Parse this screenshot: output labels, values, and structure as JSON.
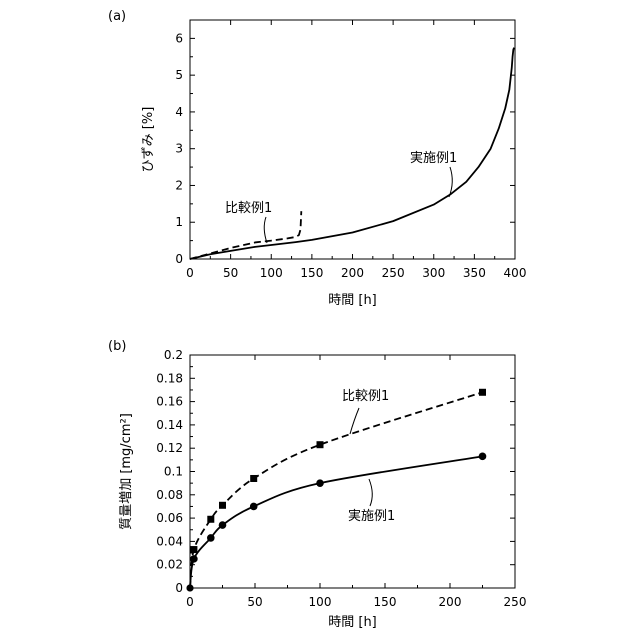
{
  "chart_data": [
    {
      "panel": "(a)",
      "type": "line",
      "xlabel": "時間 [h]",
      "ylabel": "ひずみ [%]",
      "xlim": [
        0,
        400
      ],
      "ylim": [
        0,
        6.5
      ],
      "xticks": [
        0,
        50,
        100,
        150,
        200,
        250,
        300,
        350,
        400
      ],
      "yticks": [
        0,
        1,
        2,
        3,
        4,
        5,
        6
      ],
      "grid": false,
      "series": [
        {
          "name": "実施例1",
          "style": "solid",
          "x": [
            0,
            10,
            25,
            50,
            80,
            100,
            130,
            150,
            200,
            250,
            300,
            320,
            340,
            355,
            370,
            380,
            388,
            393,
            396,
            397,
            398,
            399
          ],
          "y": [
            0,
            0.05,
            0.13,
            0.22,
            0.33,
            0.38,
            0.46,
            0.52,
            0.72,
            1.03,
            1.48,
            1.75,
            2.1,
            2.5,
            3.0,
            3.55,
            4.1,
            4.6,
            5.2,
            5.5,
            5.7,
            5.75
          ]
        },
        {
          "name": "比較例1",
          "style": "dashed",
          "x": [
            0,
            20,
            50,
            80,
            100,
            120,
            130,
            134,
            136,
            137
          ],
          "y": [
            0,
            0.12,
            0.3,
            0.45,
            0.5,
            0.56,
            0.6,
            0.65,
            0.8,
            1.3
          ]
        }
      ],
      "annotations": [
        {
          "text": "比較例1",
          "at": [
            100,
            0.52
          ]
        },
        {
          "text": "実施例1",
          "at": [
            320,
            1.72
          ]
        }
      ]
    },
    {
      "panel": "(b)",
      "type": "line",
      "xlabel": "時間 [h]",
      "ylabel": "質量増加 [mg/cm²]",
      "xlim": [
        0,
        250
      ],
      "ylim": [
        0,
        0.2
      ],
      "xticks": [
        0,
        50,
        100,
        150,
        200,
        250
      ],
      "yticks": [
        0,
        0.02,
        0.04,
        0.06,
        0.08,
        0.1,
        0.12,
        0.14,
        0.16,
        0.18,
        0.2
      ],
      "grid": false,
      "series": [
        {
          "name": "比較例1",
          "style": "dashed",
          "marker": "square",
          "x": [
            0,
            3,
            16,
            25,
            49,
            100,
            225
          ],
          "y": [
            0,
            0.033,
            0.059,
            0.071,
            0.094,
            0.123,
            0.168
          ]
        },
        {
          "name": "実施例1",
          "style": "solid",
          "marker": "circle",
          "x": [
            0,
            3,
            16,
            25,
            49,
            100,
            225
          ],
          "y": [
            0,
            0.025,
            0.043,
            0.054,
            0.07,
            0.09,
            0.113
          ]
        }
      ],
      "annotations": [
        {
          "text": "比較例1",
          "at": [
            122,
            0.135
          ]
        },
        {
          "text": "実施例1",
          "at": [
            135,
            0.096
          ]
        }
      ]
    }
  ]
}
